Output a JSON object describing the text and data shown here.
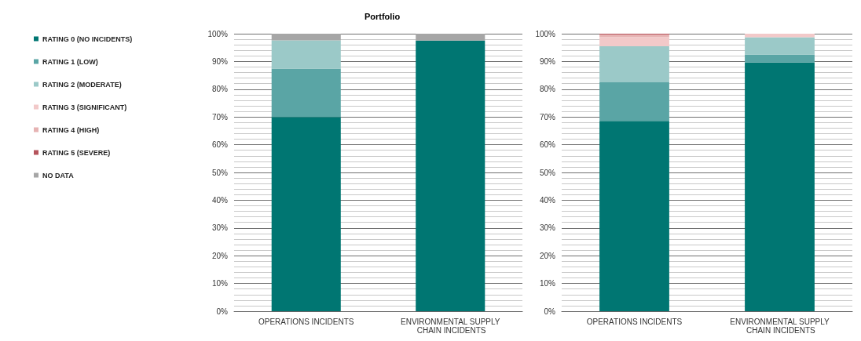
{
  "chart_data": [
    {
      "type": "bar",
      "stacked": true,
      "title": "Portfolio",
      "categories": [
        "OPERATIONS INCIDENTS",
        "ENVIRONMENTAL SUPPLY CHAIN INCIDENTS"
      ],
      "legend": "left",
      "grid": "y",
      "ylim": [
        0,
        100
      ],
      "yticks": [
        {
          "value": 0,
          "label": "0%"
        },
        {
          "value": 2,
          "label": null
        },
        {
          "value": 4,
          "label": null
        },
        {
          "value": 6,
          "label": null
        },
        {
          "value": 8,
          "label": null
        },
        {
          "value": 10,
          "label": "10%"
        },
        {
          "value": 12,
          "label": null
        },
        {
          "value": 14,
          "label": null
        },
        {
          "value": 16,
          "label": null
        },
        {
          "value": 18,
          "label": null
        },
        {
          "value": 20,
          "label": "20%"
        },
        {
          "value": 22,
          "label": null
        },
        {
          "value": 24,
          "label": null
        },
        {
          "value": 26,
          "label": null
        },
        {
          "value": 28,
          "label": null
        },
        {
          "value": 30,
          "label": "30%"
        },
        {
          "value": 32,
          "label": null
        },
        {
          "value": 34,
          "label": null
        },
        {
          "value": 36,
          "label": null
        },
        {
          "value": 38,
          "label": null
        },
        {
          "value": 40,
          "label": "40%"
        },
        {
          "value": 42,
          "label": null
        },
        {
          "value": 44,
          "label": null
        },
        {
          "value": 46,
          "label": null
        },
        {
          "value": 48,
          "label": null
        },
        {
          "value": 50,
          "label": "50%"
        },
        {
          "value": 52,
          "label": null
        },
        {
          "value": 54,
          "label": null
        },
        {
          "value": 56,
          "label": null
        },
        {
          "value": 58,
          "label": null
        },
        {
          "value": 60,
          "label": "60%"
        },
        {
          "value": 62,
          "label": null
        },
        {
          "value": 64,
          "label": null
        },
        {
          "value": 66,
          "label": null
        },
        {
          "value": 68,
          "label": null
        },
        {
          "value": 70,
          "label": "70%"
        },
        {
          "value": 72,
          "label": null
        },
        {
          "value": 74,
          "label": null
        },
        {
          "value": 76,
          "label": null
        },
        {
          "value": 78,
          "label": null
        },
        {
          "value": 80,
          "label": "80%"
        },
        {
          "value": 82,
          "label": null
        },
        {
          "value": 84,
          "label": null
        },
        {
          "value": 86,
          "label": null
        },
        {
          "value": 88,
          "label": null
        },
        {
          "value": 90,
          "label": "90%"
        },
        {
          "value": 92,
          "label": null
        },
        {
          "value": 94,
          "label": null
        },
        {
          "value": 96,
          "label": null
        },
        {
          "value": 98,
          "label": null
        },
        {
          "value": 100,
          "label": "100%"
        }
      ],
      "series": [
        {
          "name": "RATING 0 (NO INCIDENTS)",
          "color": "#007672",
          "values": [
            70.0,
            97.5
          ]
        },
        {
          "name": "RATING 1 (LOW)",
          "color": "#5aa5a5",
          "values": [
            17.4,
            0
          ]
        },
        {
          "name": "RATING 2 (MODERATE)",
          "color": "#9bc9c8",
          "values": [
            10.2,
            0
          ]
        },
        {
          "name": "RATING 3 (SIGNIFICANT)",
          "color": "#f2c9c9",
          "values": [
            0,
            0
          ]
        },
        {
          "name": "RATING 4 (HIGH)",
          "color": "#e6b3b3",
          "values": [
            0,
            0
          ]
        },
        {
          "name": "RATING 5 (SEVERE)",
          "color": "#b5545c",
          "values": [
            0,
            0
          ]
        },
        {
          "name": "NO DATA",
          "color": "#a6a6a6",
          "values": [
            2.4,
            2.5
          ]
        }
      ]
    },
    {
      "type": "bar",
      "stacked": true,
      "categories": [
        "OPERATIONS INCIDENTS",
        "ENVIRONMENTAL SUPPLY CHAIN INCIDENTS"
      ],
      "grid": "y",
      "ylim": [
        0,
        100
      ],
      "yticks": [
        {
          "value": 0,
          "label": "0%"
        },
        {
          "value": 2,
          "label": null
        },
        {
          "value": 4,
          "label": null
        },
        {
          "value": 6,
          "label": null
        },
        {
          "value": 8,
          "label": null
        },
        {
          "value": 10,
          "label": "10%"
        },
        {
          "value": 12,
          "label": null
        },
        {
          "value": 14,
          "label": null
        },
        {
          "value": 16,
          "label": null
        },
        {
          "value": 18,
          "label": null
        },
        {
          "value": 20,
          "label": "20%"
        },
        {
          "value": 22,
          "label": null
        },
        {
          "value": 24,
          "label": null
        },
        {
          "value": 26,
          "label": null
        },
        {
          "value": 28,
          "label": null
        },
        {
          "value": 30,
          "label": "30%"
        },
        {
          "value": 32,
          "label": null
        },
        {
          "value": 34,
          "label": null
        },
        {
          "value": 36,
          "label": null
        },
        {
          "value": 38,
          "label": null
        },
        {
          "value": 40,
          "label": "40%"
        },
        {
          "value": 42,
          "label": null
        },
        {
          "value": 44,
          "label": null
        },
        {
          "value": 46,
          "label": null
        },
        {
          "value": 48,
          "label": null
        },
        {
          "value": 50,
          "label": "50%"
        },
        {
          "value": 52,
          "label": null
        },
        {
          "value": 54,
          "label": null
        },
        {
          "value": 56,
          "label": null
        },
        {
          "value": 58,
          "label": null
        },
        {
          "value": 60,
          "label": "60%"
        },
        {
          "value": 62,
          "label": null
        },
        {
          "value": 64,
          "label": null
        },
        {
          "value": 66,
          "label": null
        },
        {
          "value": 68,
          "label": null
        },
        {
          "value": 70,
          "label": "70%"
        },
        {
          "value": 72,
          "label": null
        },
        {
          "value": 74,
          "label": null
        },
        {
          "value": 76,
          "label": null
        },
        {
          "value": 78,
          "label": null
        },
        {
          "value": 80,
          "label": "80%"
        },
        {
          "value": 82,
          "label": null
        },
        {
          "value": 84,
          "label": null
        },
        {
          "value": 86,
          "label": null
        },
        {
          "value": 88,
          "label": null
        },
        {
          "value": 90,
          "label": "90%"
        },
        {
          "value": 92,
          "label": null
        },
        {
          "value": 94,
          "label": null
        },
        {
          "value": 96,
          "label": null
        },
        {
          "value": 98,
          "label": null
        },
        {
          "value": 100,
          "label": "100%"
        }
      ],
      "series": [
        {
          "color": "#007672",
          "values": [
            68.6,
            89.6
          ]
        },
        {
          "color": "#5aa5a5",
          "values": [
            13.9,
            2.9
          ]
        },
        {
          "color": "#9bc9c8",
          "values": [
            13.0,
            6.2
          ]
        },
        {
          "color": "#f2c9c9",
          "values": [
            3.3,
            1.3
          ]
        },
        {
          "color": "#e6b3b3",
          "values": [
            0.9,
            0
          ]
        },
        {
          "color": "#b5545c",
          "values": [
            0.3,
            0
          ]
        },
        {
          "color": "#a6a6a6",
          "values": [
            0,
            0
          ]
        }
      ]
    }
  ]
}
